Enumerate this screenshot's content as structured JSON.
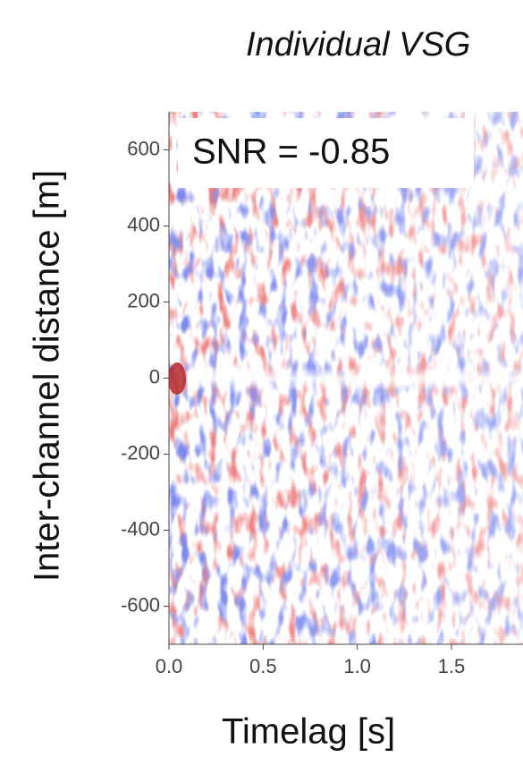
{
  "chart_data": {
    "type": "heatmap",
    "title": "Individual VSG",
    "xlabel": "Timelag [s]",
    "ylabel": "Inter-channel distance [m]",
    "annotation": "SNR = -0.85",
    "xlim": [
      0,
      1.88
    ],
    "ylim": [
      -700,
      700
    ],
    "xticks": [
      {
        "value": 0,
        "label": "0.0"
      },
      0.5,
      {
        "value": 1,
        "label": "1.0"
      },
      1.5
    ],
    "yticks": [
      -600,
      -400,
      -200,
      0,
      200,
      400,
      600
    ]
  }
}
